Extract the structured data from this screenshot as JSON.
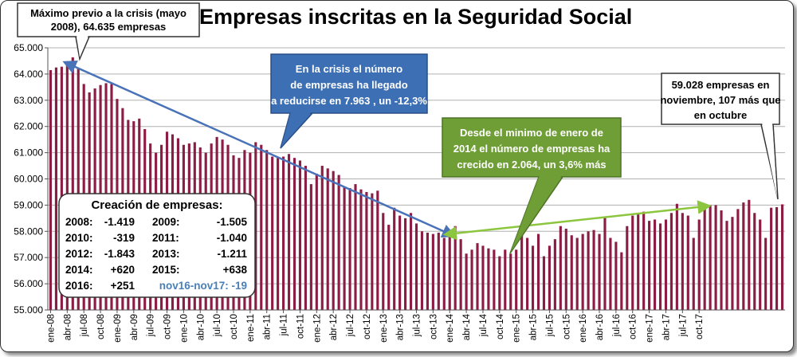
{
  "chart_data": {
    "type": "bar",
    "title": "Empresas inscritas en la Seguridad Social",
    "ylim": [
      55000,
      65000
    ],
    "y_ticks": [
      "55.000",
      "56.000",
      "57.000",
      "58.000",
      "59.000",
      "60.000",
      "61.000",
      "62.000",
      "63.000",
      "64.000",
      "65.000"
    ],
    "x_tick_labels": [
      "ene-08",
      "abr-08",
      "jul-08",
      "oct-08",
      "ene-09",
      "abr-09",
      "jul-09",
      "oct-09",
      "ene-10",
      "abr-10",
      "jul-10",
      "oct-10",
      "ene-11",
      "abr-11",
      "jul-11",
      "oct-11",
      "ene-12",
      "abr-12",
      "jul-12",
      "oct-12",
      "ene-13",
      "abr-13",
      "jul-13",
      "oct-13",
      "ene-14",
      "abr-14",
      "jul-14",
      "oct-14",
      "ene-15",
      "abr-15",
      "jul-15",
      "oct-15",
      "ene-16",
      "abr-16",
      "jul-16",
      "oct-16",
      "ene-17",
      "abr-17",
      "jul-17",
      "oct-17"
    ],
    "first_period": "ene-08",
    "last_period": "nov-17",
    "grid": true,
    "bar_color": "#8b1c44",
    "values": [
      64150,
      64250,
      64280,
      64380,
      64635,
      64200,
      63620,
      63300,
      63450,
      63580,
      63650,
      63620,
      63050,
      62700,
      62250,
      62200,
      62300,
      61900,
      61350,
      61000,
      61300,
      61800,
      61700,
      61550,
      61300,
      61350,
      61400,
      61200,
      61000,
      61350,
      61600,
      61500,
      61300,
      60900,
      60800,
      61100,
      61000,
      61400,
      61300,
      61100,
      60850,
      60800,
      60850,
      60950,
      60800,
      60700,
      60500,
      59800,
      60200,
      60500,
      60400,
      60300,
      60150,
      59700,
      59650,
      59800,
      59600,
      59500,
      59450,
      59550,
      58700,
      58250,
      58900,
      58600,
      58500,
      58700,
      58300,
      58000,
      57950,
      57900,
      57950,
      57750,
      57900,
      58200,
      57700,
      57150,
      57300,
      57550,
      57450,
      57350,
      57300,
      57050,
      57300,
      57150,
      57300,
      57850,
      57750,
      57450,
      57900,
      57050,
      57450,
      57700,
      58200,
      58100,
      57850,
      57750,
      57900,
      58000,
      58050,
      57900,
      58550,
      57750,
      57600,
      57200,
      58200,
      58600,
      58650,
      58750,
      58400,
      58450,
      58300,
      58450,
      58700,
      59050,
      58700,
      58600,
      57750,
      58450,
      58950,
      59000,
      59000,
      58800,
      58400,
      58550,
      58850,
      59100,
      59200,
      58700,
      58450,
      57750,
      58900,
      58921,
      59028
    ],
    "annotations": [
      {
        "text": "Máximo previo a la crisis (mayo 2008), 64.635 empresas"
      },
      {
        "text": "En la crisis el número de empresas ha llegado a reducirse en 7.963 , un -12,3%"
      },
      {
        "text": "Desde el minimo de enero de 2014 el número de empresas ha crecido en 2.064, un 3,6% más"
      },
      {
        "text": "59.028 empresas en noviembre, 107 más que en octubre"
      }
    ],
    "trend_lines": [
      {
        "from": "abr-08",
        "to": "ene-14",
        "color": "#4a72b8"
      },
      {
        "from": "ene-14",
        "to": "nov-17",
        "color": "#8cc63f"
      }
    ]
  },
  "creacion_box": {
    "heading": "Creación de empresas:",
    "rows": [
      {
        "y1": "2008:",
        "v1": "-1.419",
        "y2": "2009:",
        "v2": "-1.505"
      },
      {
        "y1": "2010:",
        "v1": "-319",
        "y2": "2011:",
        "v2": "-1.040"
      },
      {
        "y1": "2012:",
        "v1": "-1.843",
        "y2": "2013:",
        "v2": "-1.211"
      },
      {
        "y1": "2014:",
        "v1": "+620",
        "y2": "2015:",
        "v2": "+638"
      },
      {
        "y1": "2016:",
        "v1": "+251"
      }
    ],
    "footer": "nov16-nov17: -19",
    "footer_color": "#4a7fb8"
  }
}
